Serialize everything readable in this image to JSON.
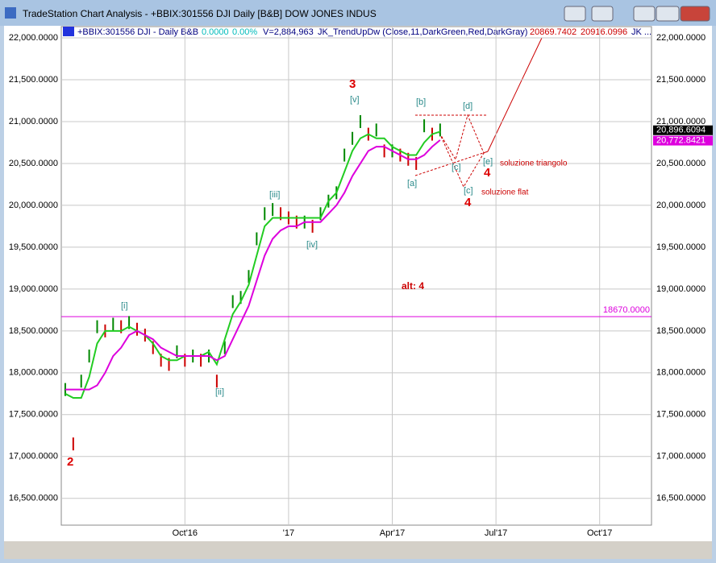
{
  "window": {
    "title": "TradeStation Chart Analysis - +BBIX:301556 DJI Daily [B&B] DOW JONES INDUS"
  },
  "header": {
    "symbol": "+BBIX:301556 DJI - Daily  B&B",
    "change": "0.0000",
    "change_pct": "0.00%",
    "volume": "V=2,884,963",
    "indicator": "JK_TrendUpDw (Close,11,DarkGreen,Red,DarkGray)",
    "value1": "20869.7402",
    "value2": "20916.0996",
    "more": "JK ..."
  },
  "chart_data": {
    "type": "line",
    "categories": [
      null,
      null,
      null,
      null,
      null,
      null,
      null,
      null,
      null,
      null,
      null,
      null,
      null,
      null,
      null,
      "Oct'16",
      null,
      null,
      null,
      null,
      null,
      null,
      null,
      null,
      null,
      null,
      null,
      null,
      "'17",
      null,
      null,
      null,
      null,
      null,
      null,
      null,
      null,
      null,
      null,
      null,
      null,
      "Apr'17",
      null,
      null,
      null,
      null,
      null,
      null,
      null,
      null,
      null,
      null,
      null,
      null,
      "Jul'17",
      null,
      null,
      null,
      null,
      null,
      null,
      null,
      null,
      null,
      null,
      null,
      null,
      "Oct'17",
      null,
      null,
      null,
      null,
      null,
      null
    ],
    "series": [
      {
        "name": "Close",
        "color": "#000000",
        "values": [
          17800,
          17150,
          17900,
          18200,
          18550,
          18500,
          18580,
          18550,
          18600,
          18520,
          18450,
          18300,
          18150,
          18100,
          18250,
          18150,
          18200,
          18150,
          18200,
          17900,
          18300,
          18850,
          18900,
          19150,
          19600,
          19900,
          19950,
          19900,
          19850,
          19800,
          19800,
          19750,
          19900,
          20050,
          20150,
          20600,
          20800,
          21000,
          20850,
          20900,
          20650,
          20650,
          20600,
          20550,
          20500,
          20950,
          20850,
          20900,
          null,
          null,
          null,
          null,
          null,
          null,
          null,
          null,
          null,
          null,
          null,
          null,
          null,
          null,
          null,
          null,
          null,
          null,
          null,
          null,
          null,
          null,
          null,
          null,
          null,
          null
        ]
      },
      {
        "name": "JK_TrendUpDw",
        "color": "#22cc22",
        "values": [
          17750,
          17700,
          17700,
          17950,
          18350,
          18500,
          18500,
          18500,
          18550,
          18500,
          18450,
          18350,
          18200,
          18150,
          18150,
          18200,
          18200,
          18200,
          18250,
          18100,
          18400,
          18700,
          18850,
          19050,
          19400,
          19750,
          19850,
          19850,
          19850,
          19850,
          19850,
          19850,
          19850,
          20050,
          20150,
          20400,
          20650,
          20800,
          20850,
          20800,
          20800,
          20700,
          20650,
          20600,
          20600,
          20750,
          20850,
          20880,
          null,
          null,
          null,
          null,
          null,
          null,
          null,
          null,
          null,
          null,
          null,
          null,
          null,
          null,
          null,
          null,
          null,
          null,
          null,
          null,
          null,
          null,
          null,
          null,
          null,
          null
        ]
      },
      {
        "name": "Average",
        "color": "#dd00dd",
        "values": [
          17800,
          17800,
          17800,
          17800,
          17850,
          18000,
          18200,
          18300,
          18450,
          18500,
          18450,
          18400,
          18300,
          18250,
          18200,
          18200,
          18200,
          18200,
          18200,
          18150,
          18200,
          18400,
          18600,
          18800,
          19100,
          19400,
          19600,
          19700,
          19750,
          19750,
          19800,
          19800,
          19800,
          19900,
          20000,
          20150,
          20350,
          20500,
          20650,
          20700,
          20700,
          20650,
          20600,
          20550,
          20550,
          20600,
          20700,
          20780,
          null,
          null,
          null,
          null,
          null,
          null,
          null,
          null,
          null,
          null,
          null,
          null,
          null,
          null,
          null,
          null,
          null,
          null,
          null,
          null,
          null,
          null,
          null,
          null,
          null,
          null
        ]
      }
    ],
    "hline": {
      "value": 18670,
      "label": "18670.0000",
      "color": "#dd00dd"
    },
    "last_labels": [
      {
        "value": 20896.6094,
        "label": "20,896.6094",
        "color": "#000000"
      },
      {
        "value": 20772.8421,
        "label": "20,772.8421",
        "color": "#dd00dd"
      }
    ],
    "ylim": [
      16180,
      22135
    ],
    "yticks": [
      {
        "value": 16500,
        "label": "16,500.0000"
      },
      {
        "value": 17000,
        "label": "17,000.0000"
      },
      {
        "value": 17500,
        "label": "17,500.0000"
      },
      {
        "value": 18000,
        "label": "18,000.0000"
      },
      {
        "value": 18500,
        "label": "18,500.0000"
      },
      {
        "value": 19000,
        "label": "19,000.0000"
      },
      {
        "value": 19500,
        "label": "19,500.0000"
      },
      {
        "value": 20000,
        "label": "20,000.0000"
      },
      {
        "value": 20500,
        "label": "20,500.0000"
      },
      {
        "value": 21000,
        "label": "21,000.0000"
      },
      {
        "value": 21500,
        "label": "21,500.0000"
      },
      {
        "value": 22000,
        "label": "22,000.0000"
      }
    ],
    "grid": true,
    "annotations": [
      "3",
      "[v]",
      "[b]",
      "[d]",
      "[iii]",
      "[iv]",
      "[i]",
      "[ii]",
      "[a]",
      "[c]",
      "[e]",
      "4",
      "soluzione triangolo",
      "[c]",
      "soluzione flat",
      "4",
      "alt: 4",
      "2"
    ]
  }
}
